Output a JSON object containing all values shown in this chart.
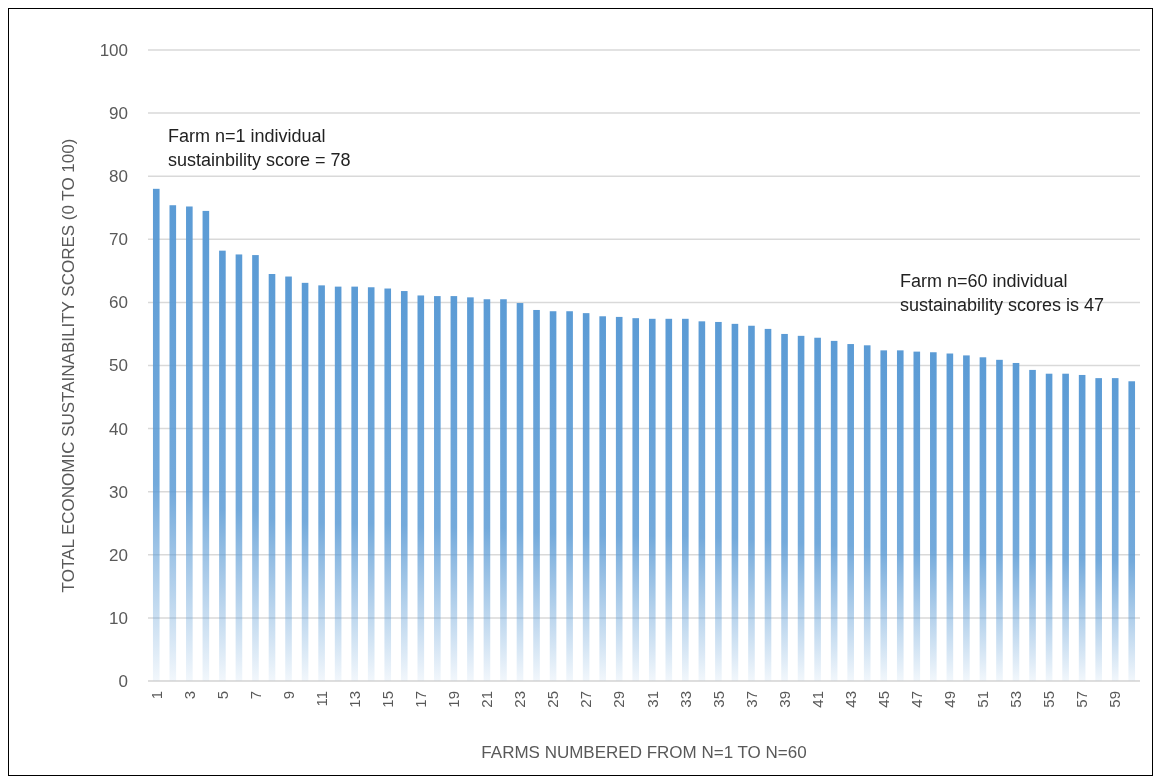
{
  "chart_data": {
    "type": "bar",
    "xlabel": "FARMS NUMBERED FROM N=1 TO N=60",
    "ylabel": "TOTAL ECONOMIC SUSTAINABILITY SCORES (0 TO 100)",
    "categories": [
      "1",
      null,
      "3",
      null,
      "5",
      null,
      "7",
      null,
      "9",
      null,
      "11",
      null,
      "13",
      null,
      "15",
      null,
      "17",
      null,
      "19",
      null,
      "21",
      null,
      "23",
      null,
      "25",
      null,
      "27",
      null,
      "29",
      null,
      "31",
      null,
      "33",
      null,
      "35",
      null,
      "37",
      null,
      "39",
      null,
      "41",
      null,
      "43",
      null,
      "45",
      null,
      "47",
      null,
      "49",
      null,
      "51",
      null,
      "53",
      null,
      "55",
      null,
      "57",
      null,
      "59",
      null
    ],
    "values": [
      78,
      75.4,
      75.2,
      74.5,
      68.2,
      67.6,
      67.5,
      64.5,
      64.1,
      63.1,
      62.7,
      62.5,
      62.5,
      62.4,
      62.2,
      61.8,
      61.1,
      61.0,
      61.0,
      60.8,
      60.5,
      60.5,
      59.9,
      58.8,
      58.6,
      58.6,
      58.3,
      57.8,
      57.7,
      57.5,
      57.4,
      57.4,
      57.4,
      57.0,
      56.9,
      56.6,
      56.3,
      55.8,
      55.0,
      54.7,
      54.4,
      53.9,
      53.4,
      53.2,
      52.4,
      52.4,
      52.2,
      52.1,
      51.9,
      51.6,
      51.3,
      50.9,
      50.4,
      49.3,
      48.7,
      48.7,
      48.5,
      48.0,
      48.0,
      47.5
    ],
    "color": "#5b9bd5",
    "ylim": [
      0,
      100
    ],
    "yticks": [
      0,
      10,
      20,
      30,
      40,
      50,
      60,
      70,
      80,
      90,
      100
    ],
    "grid": "y",
    "annotations": [
      "Farm n=1 individual\nsustainbility score = 78",
      "Farm n=60 individual\nsustainability scores is 47"
    ]
  }
}
